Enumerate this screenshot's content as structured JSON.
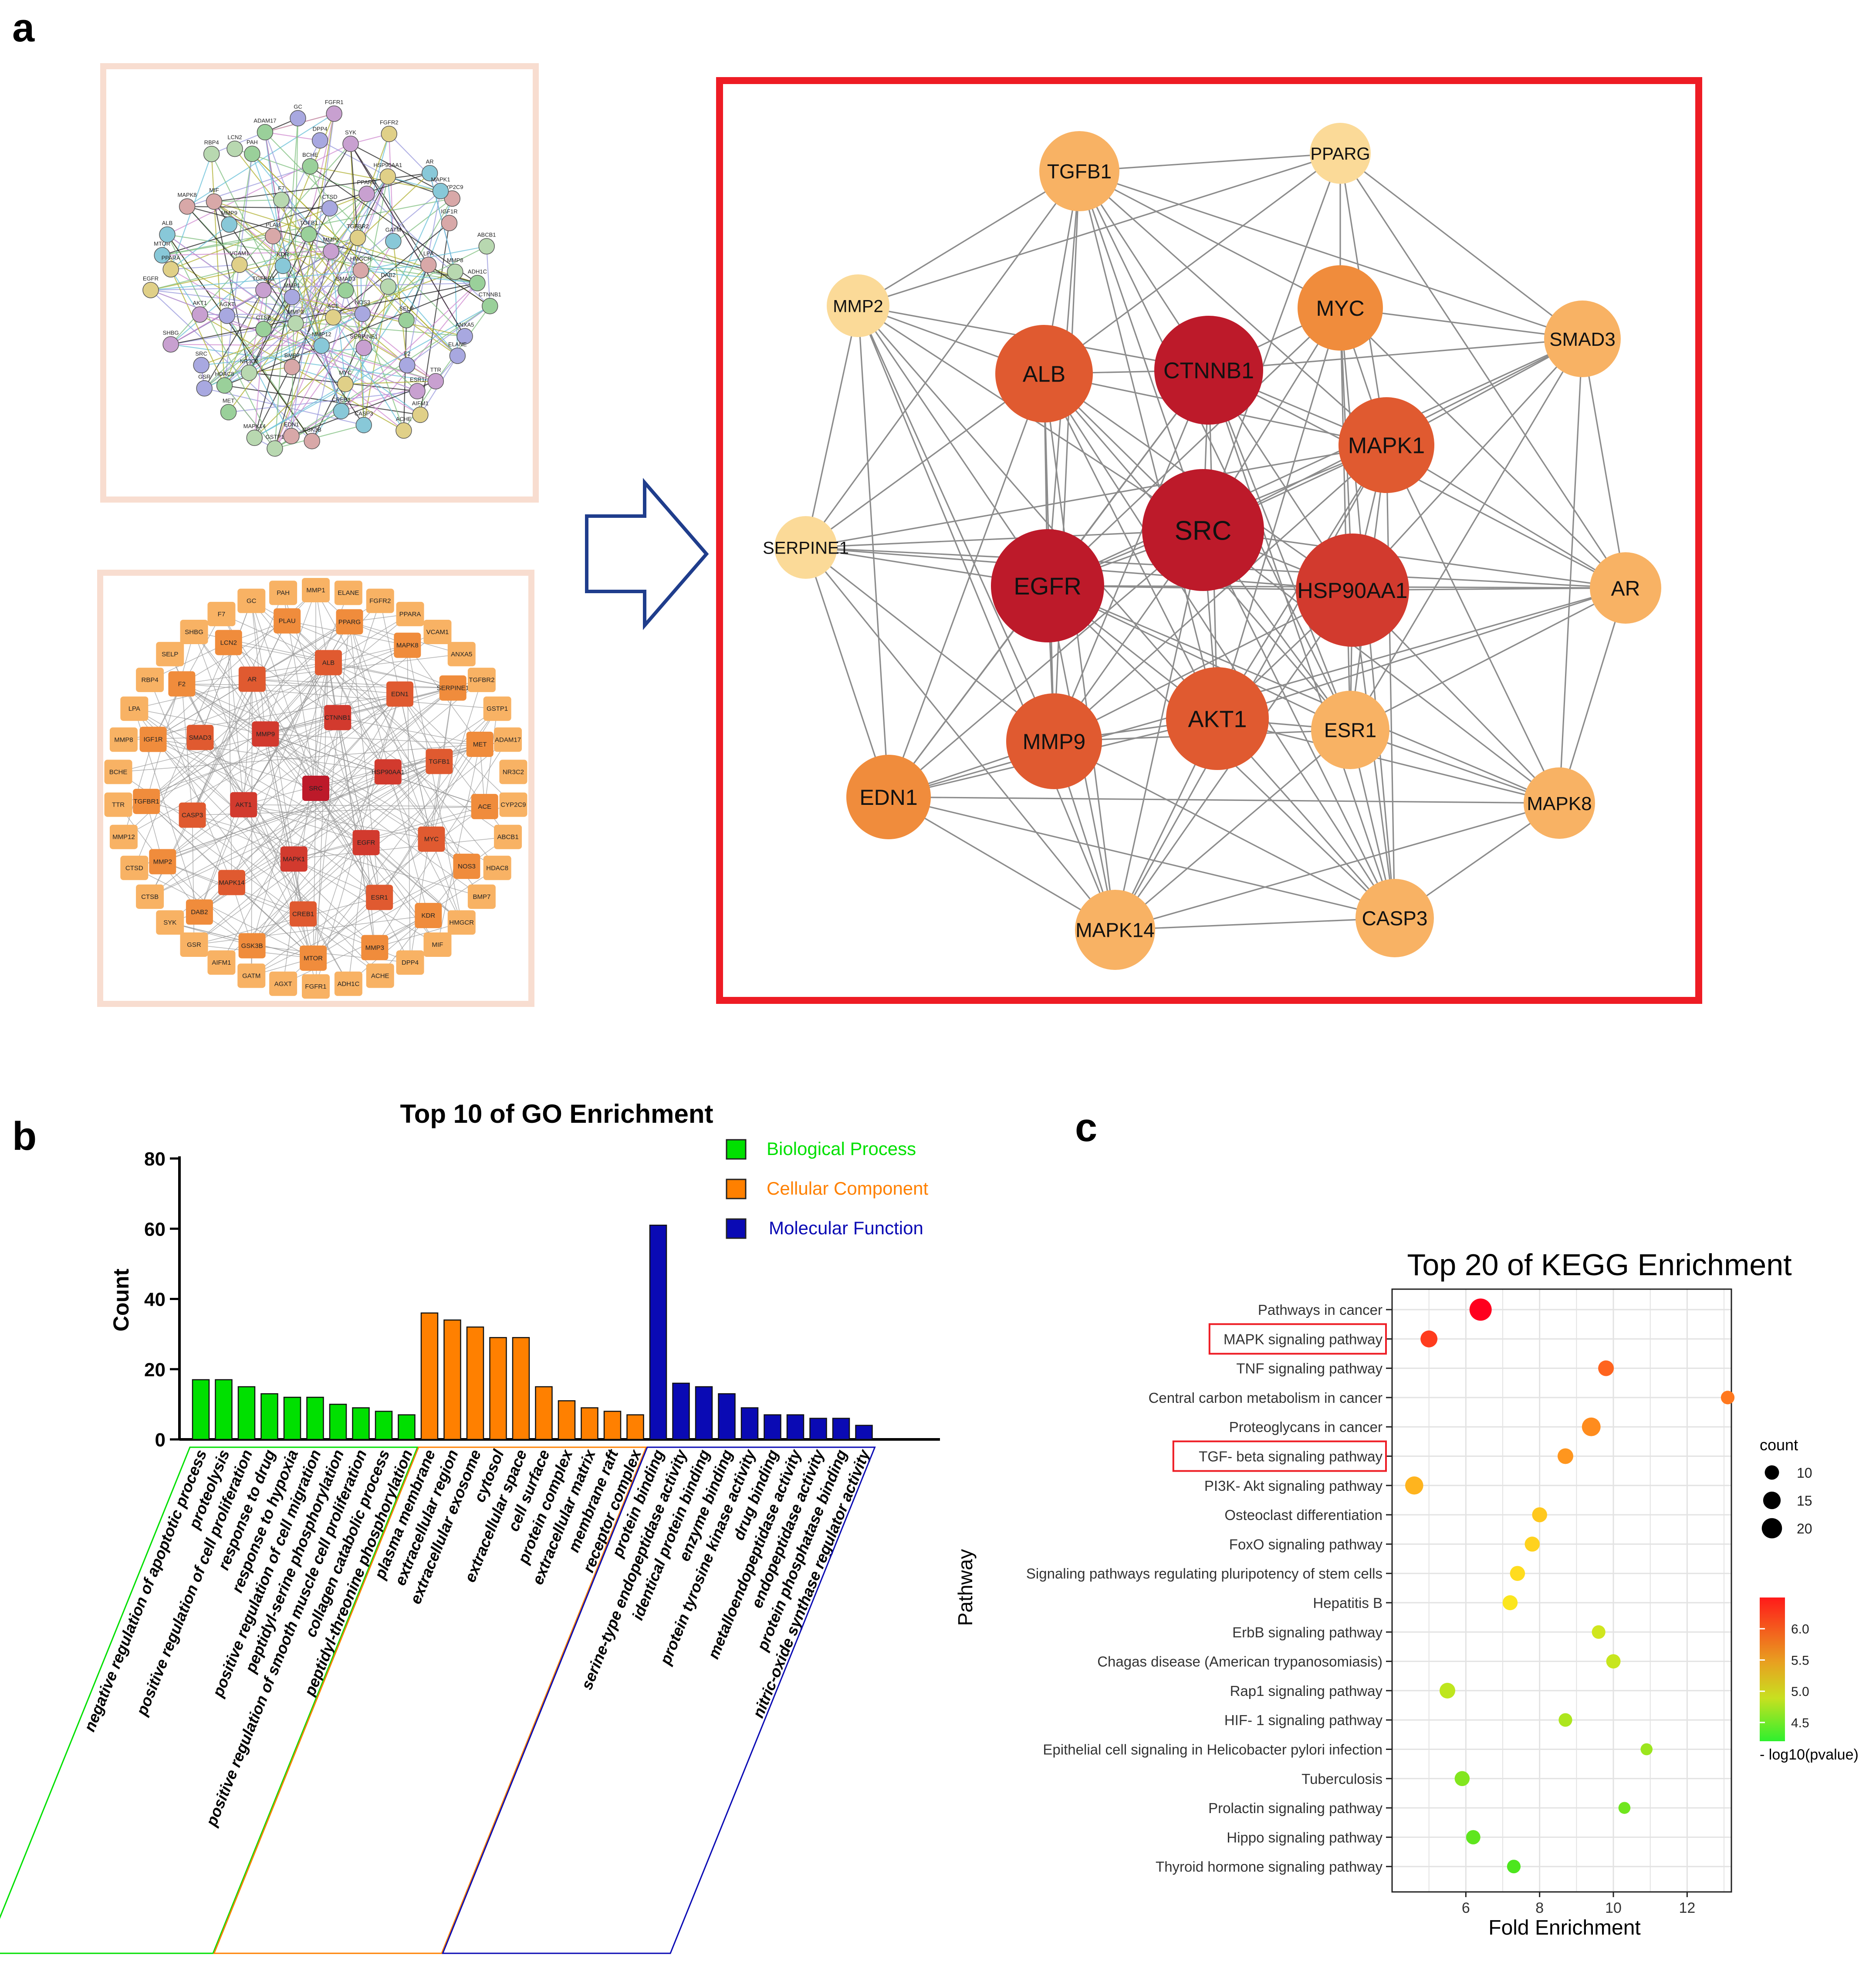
{
  "panel_labels": {
    "a": "a",
    "b": "b",
    "c": "c"
  },
  "colors": {
    "red_frame": "#ee1c24",
    "panel_frame": "#f8ddd0",
    "arrow": "#1f3d8c",
    "node_dark": "#bd1a2a",
    "node_red": "#d23a2e",
    "node_redorange": "#e05a30",
    "node_orange": "#f08c3c",
    "node_light": "#f8b264",
    "node_pale": "#fbda98",
    "bp": "#00e000",
    "cc": "#ff8000",
    "mf": "#0a0ab4"
  },
  "panel_a": {
    "string_nodes": [
      "ADH1C",
      "GSR",
      "FGFR1",
      "AIFM1",
      "MTOR",
      "CYP2C9",
      "GSTP1",
      "PAH",
      "ANXA5",
      "SHBG",
      "FGFR2",
      "CASP3",
      "MAPK8",
      "ABCB1",
      "MET",
      "GC",
      "TTR",
      "EGFR",
      "AR",
      "GSK3B",
      "RBP4",
      "CTNNB1",
      "SRC",
      "SYK",
      "ACHE",
      "ALB",
      "IGF1R",
      "MAPK14",
      "ADAM17",
      "ELANE",
      "AKT1",
      "HSP90AA1",
      "CREB1",
      "MIF",
      "MMP8",
      "HDAC8",
      "DPP4",
      "ESR1",
      "PPARA",
      "MAPK1",
      "EDN1",
      "LCN2",
      "SMAD3",
      "MMP1",
      "MMP2",
      "ACE",
      "KDR",
      "HMGCR",
      "MMP3",
      "TGFB1",
      "NOS3",
      "TGFBR1",
      "TGFBR2",
      "MMP12",
      "PLAU",
      "DAB2",
      "CTSB",
      "CTSD",
      "SERPINE1",
      "VCAM1",
      "GATM",
      "BMP7",
      "F7",
      "SELP",
      "AGXT",
      "PPARG",
      "MYC",
      "MMP9",
      "LPA",
      "NR3C2",
      "BCHE",
      "F2"
    ],
    "cytoscape_nodes": {
      "dark": [
        "SRC"
      ],
      "red": [
        "CTNNB1",
        "HSP90AA1",
        "EGFR",
        "MAPK1",
        "AKT1",
        "MMP9"
      ],
      "redorange": [
        "ALB",
        "EDN1",
        "TGFB1",
        "MYC",
        "ESR1",
        "CREB1",
        "MAPK14",
        "CASP3",
        "SMAD3",
        "AR"
      ],
      "orange": [
        "PPARG",
        "MAPK8",
        "SERPINE1",
        "MET",
        "ACE",
        "NOS3",
        "KDR",
        "MMP3",
        "MTOR",
        "GSK3B",
        "DAB2",
        "MMP2",
        "TGFBR1",
        "IGF1R",
        "F2",
        "LCN2",
        "PLAU"
      ],
      "light": [
        "MMP1",
        "ELANE",
        "FGFR2",
        "PPARA",
        "VCAM1",
        "ANXA5",
        "TGFBR2",
        "GSTP1",
        "ADAM17",
        "NR3C2",
        "CYP2C9",
        "ABCB1",
        "HDAC8",
        "BMP7",
        "HMGCR",
        "MIF",
        "DPP4",
        "ACHE",
        "ADH1C",
        "FGFR1",
        "AGXT",
        "GATM",
        "AIFM1",
        "GSR",
        "SYK",
        "CTSB",
        "CTSD",
        "MMP12",
        "TTR",
        "BCHE",
        "MMP8",
        "LPA",
        "RBP4",
        "SELP",
        "SHBG",
        "F7",
        "GC",
        "PAH"
      ]
    },
    "hub_nodes": [
      {
        "id": "SRC",
        "tier": "dark"
      },
      {
        "id": "CTNNB1",
        "tier": "dark"
      },
      {
        "id": "EGFR",
        "tier": "dark"
      },
      {
        "id": "HSP90AA1",
        "tier": "red"
      },
      {
        "id": "AKT1",
        "tier": "redorange"
      },
      {
        "id": "ALB",
        "tier": "redorange"
      },
      {
        "id": "MAPK1",
        "tier": "redorange"
      },
      {
        "id": "MMP9",
        "tier": "redorange"
      },
      {
        "id": "MYC",
        "tier": "orange"
      },
      {
        "id": "EDN1",
        "tier": "orange"
      },
      {
        "id": "TGFB1",
        "tier": "light"
      },
      {
        "id": "SMAD3",
        "tier": "light"
      },
      {
        "id": "ESR1",
        "tier": "light"
      },
      {
        "id": "AR",
        "tier": "light"
      },
      {
        "id": "MAPK8",
        "tier": "light"
      },
      {
        "id": "CASP3",
        "tier": "light"
      },
      {
        "id": "MAPK14",
        "tier": "light"
      },
      {
        "id": "PPARG",
        "tier": "pale"
      },
      {
        "id": "MMP2",
        "tier": "pale"
      },
      {
        "id": "SERPINE1",
        "tier": "pale"
      }
    ]
  },
  "chart_data": [
    {
      "type": "bar",
      "title": "Top 10 of GO Enrichment",
      "ylabel": "Count",
      "ylim": [
        0,
        80
      ],
      "yticks": [
        0,
        20,
        40,
        60,
        80
      ],
      "legend": [
        "Biological Process",
        "Cellular Component",
        "Molecular Function"
      ],
      "series": [
        {
          "name": "Biological Process",
          "categories": [
            "negative regulation of apoptotic process",
            "proteolysis",
            "positive regulation of cell proliferation",
            "response to drug",
            "response to hypoxia",
            "positive regulation of cell migration",
            "peptidyl-serine phosphorylation",
            "positive regulation of smooth muscle cell proliferation",
            "collagen catabolic process",
            "peptidyl-threonine phosphorylation"
          ],
          "values": [
            17,
            17,
            15,
            13,
            12,
            12,
            10,
            9,
            8,
            7
          ]
        },
        {
          "name": "Cellular Component",
          "categories": [
            "plasma membrane",
            "extracellular region",
            "extracellular exosome",
            "cytosol",
            "extracellular space",
            "cell surface",
            "protein complex",
            "extracellular matrix",
            "membrane raft",
            "receptor complex"
          ],
          "values": [
            36,
            34,
            32,
            29,
            29,
            15,
            11,
            9,
            8,
            7
          ]
        },
        {
          "name": "Molecular Function",
          "categories": [
            "protein binding",
            "serine-type endopeptidase activity",
            "identical protein binding",
            "enzyme binding",
            "protein tyrosine kinase activity",
            "drug binding",
            "metalloendopeptidase activity",
            "endopeptidase activity",
            "protein phosphatase binding",
            "nitric-oxide synthase regulator activity"
          ],
          "values": [
            61,
            16,
            15,
            13,
            9,
            7,
            7,
            6,
            6,
            4
          ]
        }
      ]
    },
    {
      "type": "scatter",
      "title": "Top 20 of KEGG Enrichment",
      "xlabel": "Fold Enrichment",
      "ylabel": "Pathway",
      "xlim": [
        4,
        13.2
      ],
      "xticks": [
        6,
        8,
        10,
        12
      ],
      "size_legend_title": "count",
      "size_legend": [
        10,
        15,
        20
      ],
      "color_legend_title": "- log10(pvalue)",
      "color_legend_ticks": [
        6.0,
        5.5,
        5.0,
        4.5
      ],
      "color_range": [
        4.2,
        6.5
      ],
      "highlighted": [
        "MAPK signaling pathway",
        "TGF- beta signaling pathway"
      ],
      "points": [
        {
          "pathway": "Pathways in cancer",
          "fold": 6.4,
          "count": 24,
          "logp": 6.5
        },
        {
          "pathway": "MAPK signaling pathway",
          "fold": 5.0,
          "count": 14,
          "logp": 6.2
        },
        {
          "pathway": "TNF signaling pathway",
          "fold": 9.8,
          "count": 12,
          "logp": 6.0
        },
        {
          "pathway": "Central carbon metabolism in cancer",
          "fold": 13.1,
          "count": 9,
          "logp": 5.9
        },
        {
          "pathway": "Proteoglycans in cancer",
          "fold": 9.4,
          "count": 17,
          "logp": 5.8
        },
        {
          "pathway": "TGF- beta signaling pathway",
          "fold": 8.7,
          "count": 12,
          "logp": 5.75
        },
        {
          "pathway": "PI3K- Akt signaling pathway",
          "fold": 4.6,
          "count": 16,
          "logp": 5.6
        },
        {
          "pathway": "Osteoclast differentiation",
          "fold": 8.0,
          "count": 11,
          "logp": 5.5
        },
        {
          "pathway": "FoxO signaling pathway",
          "fold": 7.8,
          "count": 11,
          "logp": 5.45
        },
        {
          "pathway": "Signaling pathways regulating pluripotency of stem cells",
          "fold": 7.4,
          "count": 11,
          "logp": 5.4
        },
        {
          "pathway": "Hepatitis B",
          "fold": 7.2,
          "count": 11,
          "logp": 5.3
        },
        {
          "pathway": "ErbB signaling pathway",
          "fold": 9.6,
          "count": 9,
          "logp": 5.05
        },
        {
          "pathway": "Chagas disease (American trypanosomiasis)",
          "fold": 10.0,
          "count": 10,
          "logp": 5.0
        },
        {
          "pathway": "Rap1 signaling pathway",
          "fold": 5.5,
          "count": 12,
          "logp": 4.95
        },
        {
          "pathway": "HIF- 1 signaling pathway",
          "fold": 8.7,
          "count": 9,
          "logp": 4.85
        },
        {
          "pathway": "Epithelial cell signaling in Helicobacter pylori infection",
          "fold": 10.9,
          "count": 7,
          "logp": 4.75
        },
        {
          "pathway": "Tuberculosis",
          "fold": 5.9,
          "count": 11,
          "logp": 4.6
        },
        {
          "pathway": "Prolactin signaling pathway",
          "fold": 10.3,
          "count": 7,
          "logp": 4.5
        },
        {
          "pathway": "Hippo signaling pathway",
          "fold": 6.2,
          "count": 10,
          "logp": 4.4
        },
        {
          "pathway": "Thyroid hormone signaling pathway",
          "fold": 7.3,
          "count": 9,
          "logp": 4.3
        }
      ]
    }
  ]
}
